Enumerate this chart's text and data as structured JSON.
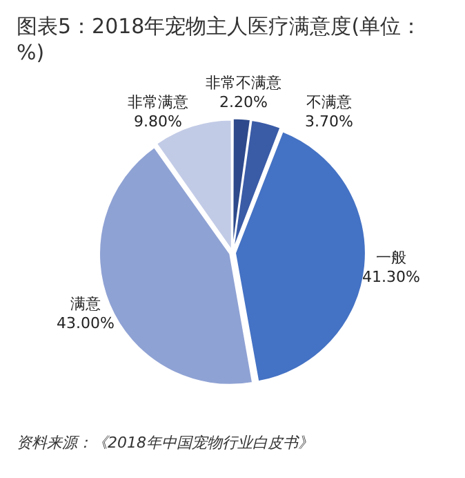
{
  "chart_data": {
    "type": "pie",
    "title": "图表5：2018年宠物主人医疗满意度(单位：%)",
    "categories": [
      "非常不满意",
      "不满意",
      "一般",
      "满意",
      "非常满意"
    ],
    "values": [
      2.2,
      3.7,
      41.3,
      43.0,
      9.8
    ],
    "value_labels": [
      "2.20%",
      "3.70%",
      "41.30%",
      "43.00%",
      "9.80%"
    ],
    "colors": [
      "#2e4a8c",
      "#3a5ba6",
      "#4472c4",
      "#8fa2d4",
      "#c2cbe6"
    ],
    "legend": false,
    "annotations": [
      "资料来源：《2018年中国宠物行业白皮书》"
    ]
  }
}
